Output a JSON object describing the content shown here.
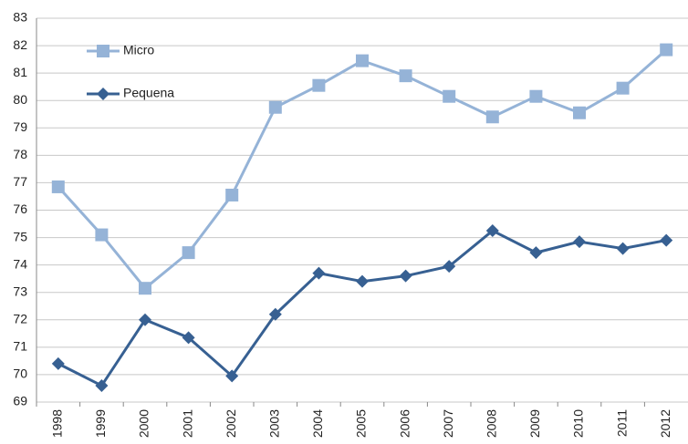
{
  "chart_data": {
    "type": "line",
    "categories": [
      "1998",
      "1999",
      "2000",
      "2001",
      "2002",
      "2003",
      "2004",
      "2005",
      "2006",
      "2007",
      "2008",
      "2009",
      "2010",
      "2011",
      "2012"
    ],
    "series": [
      {
        "name": "Micro",
        "color": "#95b3d7",
        "marker": "square",
        "values": [
          76.85,
          75.1,
          73.15,
          74.45,
          76.55,
          79.75,
          80.55,
          81.45,
          80.9,
          80.15,
          79.4,
          80.15,
          79.55,
          80.45,
          81.85
        ]
      },
      {
        "name": "Pequena",
        "color": "#376092",
        "marker": "diamond",
        "values": [
          70.4,
          69.6,
          72.0,
          71.35,
          69.95,
          72.2,
          73.7,
          73.4,
          73.6,
          73.95,
          75.25,
          74.45,
          74.85,
          74.6,
          74.9
        ]
      }
    ],
    "ylim": [
      69,
      83
    ],
    "yticks": [
      69,
      70,
      71,
      72,
      73,
      74,
      75,
      76,
      77,
      78,
      79,
      80,
      81,
      82,
      83
    ],
    "grid": true,
    "legend": "top-left"
  }
}
